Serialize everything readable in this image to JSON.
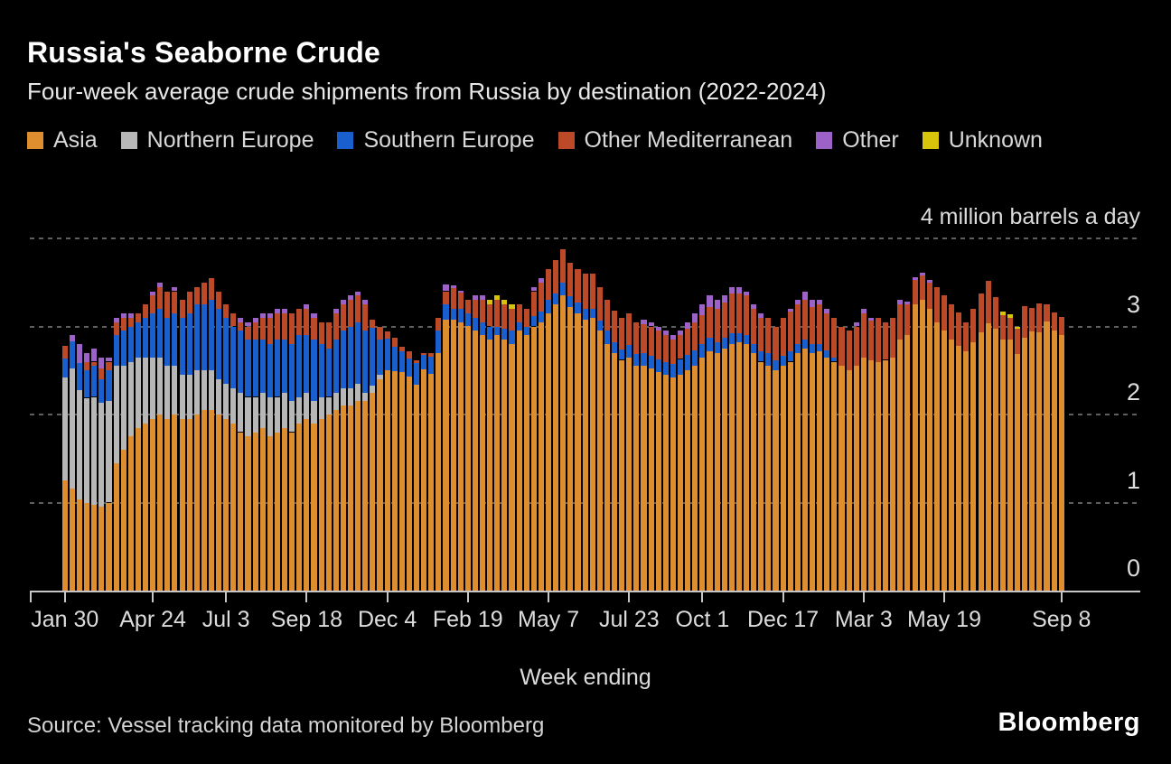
{
  "header": {
    "title": "Russia's Seaborne Crude",
    "subtitle": "Four-week average crude shipments from Russia by destination (2022-2024)"
  },
  "legend": [
    {
      "label": "Asia",
      "color": "#DE8E2F"
    },
    {
      "label": "Northern Europe",
      "color": "#B7B7B7"
    },
    {
      "label": "Southern Europe",
      "color": "#1A5FCE"
    },
    {
      "label": "Other Mediterranean",
      "color": "#BC4A28"
    },
    {
      "label": "Other",
      "color": "#9C62C8"
    },
    {
      "label": "Unknown",
      "color": "#D8C40A"
    }
  ],
  "axis": {
    "top_label": "4 million barrels a day",
    "y_tick_labels": [
      "3",
      "2",
      "1",
      "0"
    ],
    "x_axis_title": "Week ending"
  },
  "footer": {
    "source": "Source: Vessel tracking data monitored by Bloomberg",
    "logo": "Bloomberg"
  },
  "chart_data": {
    "type": "bar",
    "stacked": true,
    "title": "Russia's Seaborne Crude",
    "subtitle": "Four-week average crude shipments from Russia by destination (2022-2024)",
    "unit": "million barrels a day",
    "ylim": [
      0,
      4
    ],
    "grid_values": [
      4,
      3,
      2,
      1
    ],
    "xlabel": "Week ending",
    "series_names": [
      "Asia",
      "Northern Europe",
      "Southern Europe",
      "Other Mediterranean",
      "Other",
      "Unknown"
    ],
    "colors": [
      "#DE8E2F",
      "#B7B7B7",
      "#1A5FCE",
      "#BC4A28",
      "#9C62C8",
      "#D8C40A"
    ],
    "x_ticks": [
      {
        "week": 1,
        "label": "Jan 30"
      },
      {
        "week": 13,
        "label": "Apr 24"
      },
      {
        "week": 23,
        "label": "Jul 3"
      },
      {
        "week": 34,
        "label": "Sep 18"
      },
      {
        "week": 45,
        "label": "Dec 4"
      },
      {
        "week": 56,
        "label": "Feb 19"
      },
      {
        "week": 67,
        "label": "May 7"
      },
      {
        "week": 78,
        "label": "Jul 23"
      },
      {
        "week": 88,
        "label": "Oct 1"
      },
      {
        "week": 99,
        "label": "Dec 17"
      },
      {
        "week": 110,
        "label": "Mar 3"
      },
      {
        "week": 121,
        "label": "May 19"
      },
      {
        "week": 137,
        "label": "Sep 8"
      }
    ],
    "weeks": [
      [
        1.25,
        1.17,
        0.22,
        0.14,
        0,
        0
      ],
      [
        1.16,
        1.36,
        0.31,
        0,
        0.07,
        0
      ],
      [
        1.04,
        1.24,
        0.31,
        0,
        0.21,
        0
      ],
      [
        1.0,
        1.19,
        0.31,
        0.1,
        0.1,
        0
      ],
      [
        0.97,
        1.23,
        0.35,
        0.05,
        0.15,
        0
      ],
      [
        0.95,
        1.18,
        0.27,
        0.12,
        0.13,
        0
      ],
      [
        1.0,
        1.15,
        0.35,
        0.1,
        0.05,
        0
      ],
      [
        1.45,
        1.1,
        0.35,
        0.15,
        0.05,
        0
      ],
      [
        1.6,
        0.95,
        0.4,
        0.15,
        0.05,
        0
      ],
      [
        1.75,
        0.85,
        0.4,
        0.1,
        0.05,
        0
      ],
      [
        1.85,
        0.8,
        0.4,
        0.1,
        0,
        0
      ],
      [
        1.9,
        0.75,
        0.45,
        0.15,
        0,
        0
      ],
      [
        1.95,
        0.7,
        0.5,
        0.2,
        0.05,
        0
      ],
      [
        2.0,
        0.65,
        0.55,
        0.25,
        0.05,
        0
      ],
      [
        1.95,
        0.6,
        0.55,
        0.3,
        0,
        0
      ],
      [
        2.0,
        0.55,
        0.6,
        0.25,
        0.05,
        0
      ],
      [
        1.95,
        0.5,
        0.65,
        0.2,
        0,
        0
      ],
      [
        1.95,
        0.5,
        0.7,
        0.25,
        0,
        0
      ],
      [
        2.0,
        0.5,
        0.75,
        0.2,
        0,
        0
      ],
      [
        2.05,
        0.45,
        0.75,
        0.25,
        0,
        0
      ],
      [
        2.05,
        0.45,
        0.8,
        0.25,
        0,
        0
      ],
      [
        2.0,
        0.4,
        0.8,
        0.2,
        0,
        0
      ],
      [
        1.95,
        0.4,
        0.75,
        0.15,
        0,
        0
      ],
      [
        1.9,
        0.4,
        0.7,
        0.15,
        0,
        0
      ],
      [
        1.8,
        0.45,
        0.7,
        0.1,
        0.05,
        0
      ],
      [
        1.75,
        0.45,
        0.65,
        0.15,
        0.05,
        0
      ],
      [
        1.8,
        0.4,
        0.65,
        0.2,
        0.05,
        0
      ],
      [
        1.85,
        0.4,
        0.6,
        0.25,
        0.05,
        0
      ],
      [
        1.75,
        0.45,
        0.6,
        0.3,
        0.05,
        0
      ],
      [
        1.8,
        0.4,
        0.65,
        0.3,
        0.05,
        0
      ],
      [
        1.85,
        0.4,
        0.6,
        0.3,
        0.05,
        0
      ],
      [
        1.8,
        0.35,
        0.65,
        0.35,
        0,
        0
      ],
      [
        1.9,
        0.3,
        0.7,
        0.3,
        0,
        0
      ],
      [
        1.95,
        0.3,
        0.65,
        0.3,
        0.05,
        0
      ],
      [
        1.9,
        0.25,
        0.7,
        0.25,
        0.05,
        0
      ],
      [
        1.95,
        0.25,
        0.6,
        0.25,
        0,
        0
      ],
      [
        2.0,
        0.2,
        0.55,
        0.3,
        0,
        0
      ],
      [
        2.05,
        0.2,
        0.6,
        0.3,
        0.05,
        0
      ],
      [
        2.1,
        0.2,
        0.65,
        0.3,
        0.05,
        0
      ],
      [
        2.1,
        0.2,
        0.7,
        0.3,
        0.05,
        0
      ],
      [
        2.15,
        0.2,
        0.7,
        0.3,
        0.05,
        0
      ],
      [
        2.15,
        0.1,
        0.7,
        0.3,
        0.05,
        0
      ],
      [
        2.25,
        0.08,
        0.65,
        0.1,
        0,
        0
      ],
      [
        2.4,
        0.05,
        0.4,
        0.15,
        0,
        0
      ],
      [
        2.5,
        0,
        0.36,
        0.08,
        0,
        0
      ],
      [
        2.49,
        0,
        0.28,
        0.1,
        0,
        0
      ],
      [
        2.48,
        0,
        0.24,
        0.05,
        0,
        0
      ],
      [
        2.43,
        0,
        0.21,
        0.08,
        0,
        0
      ],
      [
        2.34,
        0,
        0.24,
        0.04,
        0,
        0
      ],
      [
        2.51,
        0,
        0.17,
        0.02,
        0,
        0
      ],
      [
        2.46,
        0,
        0.2,
        0.04,
        0,
        0
      ],
      [
        2.7,
        0,
        0.25,
        0.15,
        0,
        0
      ],
      [
        3.08,
        0,
        0.17,
        0.15,
        0.08,
        0
      ],
      [
        3.08,
        0,
        0.12,
        0.24,
        0.03,
        0
      ],
      [
        3.05,
        0,
        0.15,
        0.18,
        0.03,
        0
      ],
      [
        3.01,
        0,
        0.14,
        0.15,
        0,
        0
      ],
      [
        2.95,
        0,
        0.15,
        0.2,
        0.05,
        0
      ],
      [
        2.9,
        0,
        0.15,
        0.25,
        0.05,
        0
      ],
      [
        2.85,
        0,
        0.15,
        0.25,
        0,
        0.05
      ],
      [
        2.9,
        0,
        0.1,
        0.3,
        0,
        0.05
      ],
      [
        2.85,
        0,
        0.12,
        0.28,
        0,
        0.05
      ],
      [
        2.8,
        0,
        0.15,
        0.25,
        0,
        0.05
      ],
      [
        2.95,
        0,
        0.1,
        0.2,
        0,
        0
      ],
      [
        2.9,
        0,
        0.1,
        0.2,
        0,
        0
      ],
      [
        3.0,
        0,
        0.12,
        0.28,
        0.05,
        0
      ],
      [
        3.05,
        0,
        0.12,
        0.33,
        0.05,
        0
      ],
      [
        3.15,
        0,
        0.15,
        0.35,
        0,
        0
      ],
      [
        3.25,
        0,
        0.12,
        0.38,
        0,
        0
      ],
      [
        3.35,
        0,
        0.15,
        0.38,
        0,
        0
      ],
      [
        3.22,
        0,
        0.12,
        0.38,
        0,
        0
      ],
      [
        3.15,
        0,
        0.12,
        0.38,
        0,
        0
      ],
      [
        3.08,
        0,
        0.12,
        0.4,
        0,
        0
      ],
      [
        3.1,
        0,
        0.1,
        0.4,
        0,
        0
      ],
      [
        2.95,
        0,
        0.12,
        0.38,
        0,
        0
      ],
      [
        2.8,
        0,
        0.15,
        0.35,
        0,
        0
      ],
      [
        2.7,
        0,
        0.12,
        0.36,
        0,
        0
      ],
      [
        2.62,
        0,
        0.12,
        0.36,
        0,
        0
      ],
      [
        2.65,
        0,
        0.14,
        0.36,
        0,
        0
      ],
      [
        2.55,
        0,
        0.14,
        0.36,
        0,
        0
      ],
      [
        2.55,
        0,
        0.15,
        0.33,
        0.05,
        0
      ],
      [
        2.52,
        0,
        0.15,
        0.33,
        0.05,
        0
      ],
      [
        2.48,
        0,
        0.15,
        0.32,
        0.05,
        0
      ],
      [
        2.45,
        0,
        0.15,
        0.3,
        0.05,
        0
      ],
      [
        2.42,
        0,
        0.15,
        0.28,
        0.05,
        0
      ],
      [
        2.45,
        0,
        0.18,
        0.27,
        0.05,
        0
      ],
      [
        2.5,
        0,
        0.18,
        0.29,
        0.08,
        0
      ],
      [
        2.55,
        0,
        0.18,
        0.32,
        0.1,
        0
      ],
      [
        2.65,
        0,
        0.15,
        0.33,
        0.12,
        0
      ],
      [
        2.72,
        0,
        0.15,
        0.35,
        0.13,
        0
      ],
      [
        2.7,
        0,
        0.12,
        0.38,
        0.1,
        0
      ],
      [
        2.75,
        0,
        0.12,
        0.4,
        0.08,
        0
      ],
      [
        2.8,
        0,
        0.12,
        0.45,
        0.08,
        0
      ],
      [
        2.82,
        0,
        0.1,
        0.45,
        0.08,
        0
      ],
      [
        2.8,
        0,
        0.1,
        0.45,
        0.05,
        0
      ],
      [
        2.7,
        0,
        0.1,
        0.4,
        0.05,
        0
      ],
      [
        2.6,
        0,
        0.12,
        0.38,
        0.05,
        0
      ],
      [
        2.55,
        0,
        0.15,
        0.4,
        0,
        0
      ],
      [
        2.5,
        0,
        0.12,
        0.38,
        0,
        0
      ],
      [
        2.55,
        0,
        0.12,
        0.43,
        0,
        0
      ],
      [
        2.6,
        0,
        0.12,
        0.45,
        0.03,
        0
      ],
      [
        2.7,
        0,
        0.1,
        0.45,
        0.05,
        0
      ],
      [
        2.75,
        0,
        0.1,
        0.45,
        0.1,
        0
      ],
      [
        2.7,
        0,
        0.1,
        0.42,
        0.08,
        0
      ],
      [
        2.72,
        0,
        0.08,
        0.45,
        0.05,
        0
      ],
      [
        2.65,
        0,
        0.08,
        0.42,
        0.05,
        0
      ],
      [
        2.6,
        0,
        0.05,
        0.45,
        0,
        0
      ],
      [
        2.55,
        0,
        0,
        0.45,
        0,
        0
      ],
      [
        2.5,
        0,
        0,
        0.45,
        0,
        0
      ],
      [
        2.55,
        0,
        0,
        0.45,
        0.05,
        0
      ],
      [
        2.65,
        0,
        0,
        0.5,
        0.05,
        0
      ],
      [
        2.62,
        0,
        0,
        0.45,
        0.03,
        0
      ],
      [
        2.6,
        0,
        0,
        0.5,
        0,
        0
      ],
      [
        2.62,
        0,
        0,
        0.43,
        0,
        0
      ],
      [
        2.65,
        0,
        0,
        0.45,
        0,
        0
      ],
      [
        2.85,
        0,
        0,
        0.4,
        0.05,
        0
      ],
      [
        2.9,
        0,
        0,
        0.35,
        0.03,
        0
      ],
      [
        3.25,
        0,
        0,
        0.28,
        0.03,
        0
      ],
      [
        3.3,
        0,
        0,
        0.28,
        0.03,
        0
      ],
      [
        3.2,
        0,
        0,
        0.3,
        0.03,
        0
      ],
      [
        3.05,
        0,
        0,
        0.4,
        0,
        0
      ],
      [
        2.95,
        0,
        0,
        0.4,
        0,
        0
      ],
      [
        2.85,
        0,
        0,
        0.4,
        0,
        0
      ],
      [
        2.78,
        0,
        0,
        0.38,
        0,
        0
      ],
      [
        2.72,
        0,
        0,
        0.33,
        0,
        0
      ],
      [
        2.82,
        0,
        0,
        0.38,
        0,
        0
      ],
      [
        2.93,
        0,
        0,
        0.44,
        0,
        0
      ],
      [
        3.04,
        0,
        0,
        0.48,
        0,
        0
      ],
      [
        2.97,
        0,
        0,
        0.36,
        0,
        0
      ],
      [
        2.85,
        0,
        0,
        0.28,
        0,
        0.04
      ],
      [
        2.85,
        0,
        0,
        0.25,
        0,
        0.04
      ],
      [
        2.69,
        0,
        0,
        0.28,
        0,
        0.03
      ],
      [
        2.87,
        0,
        0,
        0.36,
        0,
        0
      ],
      [
        2.94,
        0,
        0,
        0.27,
        0,
        0
      ],
      [
        2.93,
        0,
        0,
        0.33,
        0,
        0
      ],
      [
        3.06,
        0,
        0,
        0.19,
        0,
        0
      ],
      [
        2.95,
        0,
        0,
        0.21,
        0,
        0
      ],
      [
        2.9,
        0,
        0,
        0.21,
        0,
        0
      ]
    ]
  }
}
